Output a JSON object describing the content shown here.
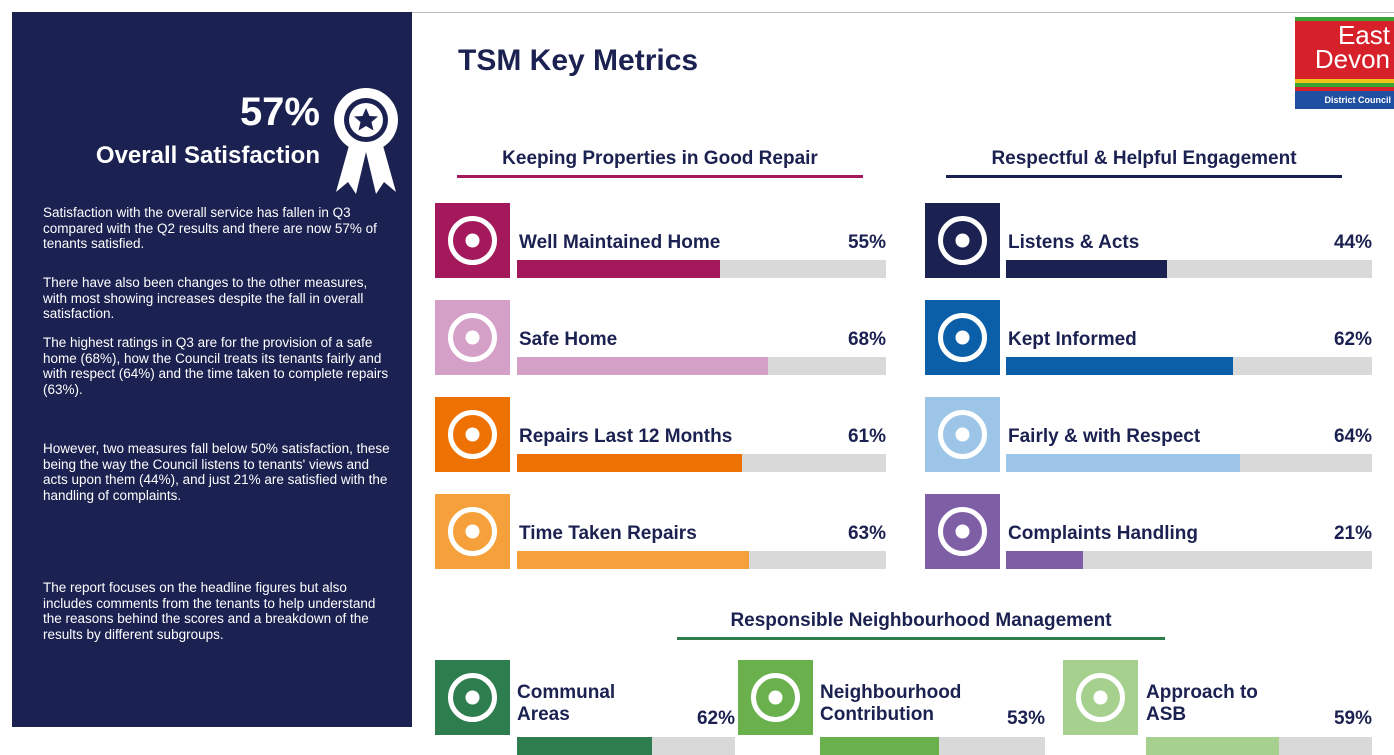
{
  "sidebar": {
    "headline": {
      "value": 57,
      "label": "57%"
    },
    "subtitle": "Overall Satisfaction",
    "paragraphs": [
      "Satisfaction with the overall service has fallen in Q3 compared with the Q2 results and there are now 57% of tenants satisfied.",
      "There have also been changes to the other measures, with most showing increases despite the fall in overall satisfaction.",
      "The highest ratings in Q3 are for the provision of a safe home (68%), how the Council treats its tenants fairly and with respect (64%) and the time taken to complete repairs (63%).",
      "However, two measures fall below 50% satisfaction, these being the way the Council listens to tenants' views and acts upon them (44%), and just 21% are satisfied with the handling of complaints.",
      "The report focuses on the headline figures but also includes comments from the tenants to help understand the reasons behind the scores and a breakdown of the results by different subgroups."
    ]
  },
  "title": "TSM Key Metrics",
  "logo": {
    "line1": "East",
    "line2": "Devon",
    "line3": "District Council"
  },
  "bar_range": [
    0,
    100
  ],
  "sections": [
    {
      "heading": "Keeping Properties in Good Repair",
      "color": "#a3195b",
      "metrics": [
        {
          "name": "Well Maintained Home",
          "value": 55,
          "value_label": "55%",
          "color": "#a3195b"
        },
        {
          "name": "Safe Home",
          "value": 68,
          "value_label": "68%",
          "color": "#d4a0c8"
        },
        {
          "name": "Repairs Last 12 Months",
          "value": 61,
          "value_label": "61%",
          "color": "#ee7203"
        },
        {
          "name": "Time Taken Repairs",
          "value": 63,
          "value_label": "63%",
          "color": "#f5a03a"
        }
      ]
    },
    {
      "heading": "Respectful & Helpful Engagement",
      "color": "#1b2150",
      "metrics": [
        {
          "name": "Listens & Acts",
          "value": 44,
          "value_label": "44%",
          "color": "#1b2150"
        },
        {
          "name": "Kept Informed",
          "value": 62,
          "value_label": "62%",
          "color": "#0b5ea8"
        },
        {
          "name": "Fairly & with Respect",
          "value": 64,
          "value_label": "64%",
          "color": "#9cc5e8"
        },
        {
          "name": "Complaints Handling",
          "value": 21,
          "value_label": "21%",
          "color": "#7e5fa6"
        }
      ]
    },
    {
      "heading": "Responsible Neighbourhood Management",
      "color": "#2e7d4f",
      "metrics": [
        {
          "name": "Communal Areas",
          "value": 62,
          "value_label": "62%",
          "color": "#2e7d4f"
        },
        {
          "name": "Neighbourhood Contribution",
          "value": 53,
          "value_label": "53%",
          "color": "#6ab04c"
        },
        {
          "name": "Approach to ASB",
          "value": 59,
          "value_label": "59%",
          "color": "#a5d08d"
        }
      ]
    }
  ]
}
